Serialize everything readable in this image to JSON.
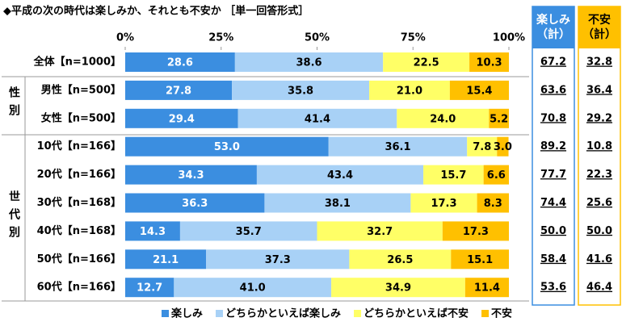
{
  "chart_data": {
    "type": "stacked-bar-horizontal",
    "title": "◆平成の次の時代は楽しみか、それとも不安か ［単一回答形式］",
    "categories": [
      "全体【n=1000】",
      "男性【n=500】",
      "女性【n=500】",
      "10代【n=166】",
      "20代【n=166】",
      "30代【n=168】",
      "40代【n=168】",
      "50代【n=166】",
      "60代【n=166】"
    ],
    "groups": [
      {
        "label": "性別",
        "from": 1,
        "to": 2
      },
      {
        "label": "世代別",
        "from": 3,
        "to": 8
      }
    ],
    "xlim": [
      0,
      100
    ],
    "xticks": [
      {
        "value": 0,
        "label": "0%"
      },
      {
        "value": 25,
        "label": "25%"
      },
      {
        "value": 50,
        "label": "50%"
      },
      {
        "value": 75,
        "label": "75%"
      },
      {
        "value": 100,
        "label": "100%"
      }
    ],
    "series": [
      {
        "name": "楽しみ",
        "color": "#3b8ee0",
        "label_color": "#ffffff",
        "values": [
          28.6,
          27.8,
          29.4,
          53.0,
          34.3,
          36.3,
          14.3,
          21.1,
          12.7
        ],
        "value_labels": [
          "28.6",
          "27.8",
          "29.4",
          "53.0",
          "34.3",
          "36.3",
          "14.3",
          "21.1",
          "12.7"
        ]
      },
      {
        "name": "どちらかといえば楽しみ",
        "color": "#a8d1f6",
        "label_color": "#000000",
        "values": [
          38.6,
          35.8,
          41.4,
          36.1,
          43.4,
          38.1,
          35.7,
          37.3,
          41.0
        ],
        "value_labels": [
          "38.6",
          "35.8",
          "41.4",
          "36.1",
          "43.4",
          "38.1",
          "35.7",
          "37.3",
          "41.0"
        ]
      },
      {
        "name": "どちらかといえば不安",
        "color": "#ffff66",
        "label_color": "#000000",
        "values": [
          22.5,
          21.0,
          24.0,
          7.8,
          15.7,
          17.3,
          32.7,
          26.5,
          34.9
        ],
        "value_labels": [
          "22.5",
          "21.0",
          "24.0",
          "7.8",
          "15.7",
          "17.3",
          "32.7",
          "26.5",
          "34.9"
        ]
      },
      {
        "name": "不安",
        "color": "#ffc000",
        "label_color": "#000000",
        "values": [
          10.3,
          15.4,
          5.2,
          3.0,
          6.6,
          8.3,
          17.3,
          15.1,
          11.4
        ],
        "value_labels": [
          "10.3",
          "15.4",
          "5.2",
          "3.0",
          "6.6",
          "8.3",
          "17.3",
          "15.1",
          "11.4"
        ]
      }
    ],
    "summary_columns": [
      {
        "name": "楽しみ（計）",
        "color": "#3b8ee0",
        "values": [
          67.2,
          63.6,
          70.8,
          89.2,
          77.7,
          74.4,
          50.0,
          58.4,
          53.6
        ],
        "value_labels": [
          "67.2",
          "63.6",
          "70.8",
          "89.2",
          "77.7",
          "74.4",
          "50.0",
          "58.4",
          "53.6"
        ]
      },
      {
        "name": "不安（計）",
        "color": "#ffc000",
        "values": [
          32.8,
          36.4,
          29.2,
          10.8,
          22.3,
          25.6,
          50.0,
          41.6,
          46.4
        ],
        "value_labels": [
          "32.8",
          "36.4",
          "29.2",
          "10.8",
          "22.3",
          "25.6",
          "50.0",
          "41.6",
          "46.4"
        ]
      }
    ]
  }
}
